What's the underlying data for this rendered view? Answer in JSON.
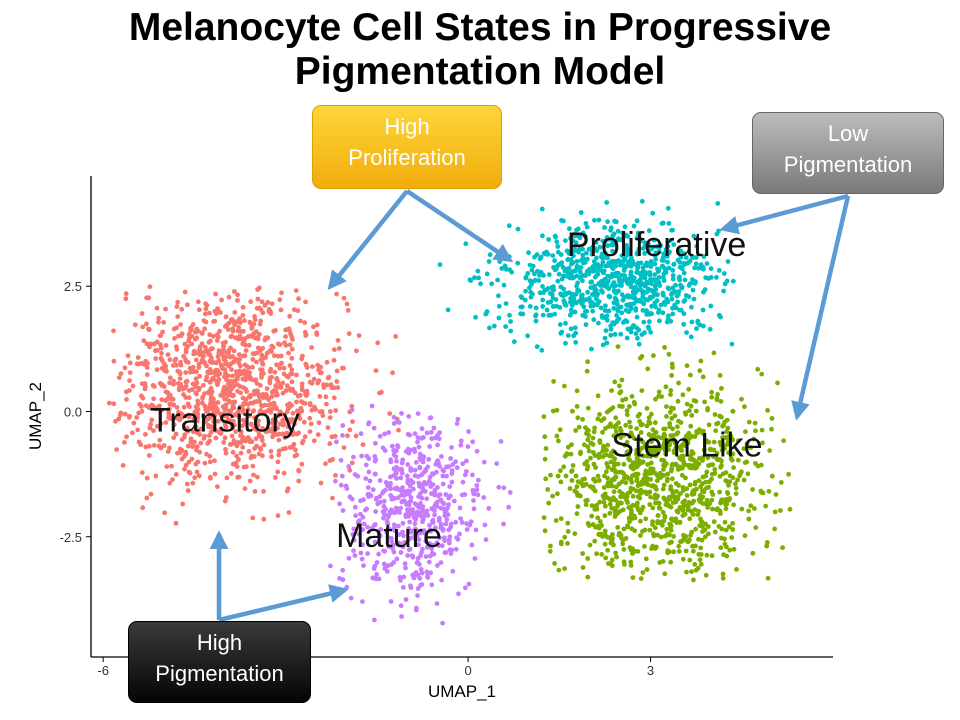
{
  "title": [
    "Melanocyte Cell States in Progressive",
    "Pigmentation Model"
  ],
  "chart_data": {
    "type": "scatter",
    "xlabel": "UMAP_1",
    "ylabel": "UMAP_2",
    "xlim": [
      -6.2,
      6.0
    ],
    "ylim": [
      -4.9,
      4.7
    ],
    "x_ticks": [
      -6,
      0,
      3
    ],
    "x_tick_labels": [
      "-6",
      "0",
      "3"
    ],
    "y_ticks": [
      2.5,
      0.0,
      -2.5
    ],
    "y_tick_labels": [
      "2.5",
      "0.0",
      "-2.5"
    ],
    "grid": false,
    "legend": "none",
    "clusters": [
      {
        "name": "Transitory",
        "color": "#f8766d",
        "n": 1150,
        "center": [
          -3.9,
          0.5
        ],
        "spread": [
          1.25,
          1.3
        ],
        "extent": [
          -5.9,
          -1.1,
          -2.8,
          2.5
        ]
      },
      {
        "name": "Mature",
        "color": "#c77cff",
        "n": 560,
        "center": [
          -0.9,
          -1.9
        ],
        "spread": [
          0.8,
          1.2
        ],
        "extent": [
          -2.3,
          0.7,
          -4.5,
          0.2
        ]
      },
      {
        "name": "Proliferative",
        "color": "#00bfc4",
        "n": 850,
        "center": [
          2.4,
          2.6
        ],
        "spread": [
          1.2,
          0.75
        ],
        "extent": [
          -0.5,
          4.4,
          0.8,
          4.3
        ]
      },
      {
        "name": "Stem Like",
        "color": "#7cae00",
        "n": 1050,
        "center": [
          3.1,
          -1.3
        ],
        "spread": [
          1.15,
          1.25
        ],
        "extent": [
          1.2,
          5.3,
          -3.4,
          1.4
        ]
      }
    ],
    "annotations": [
      {
        "text": "Proliferative",
        "x": 3.1,
        "y": 3.1
      },
      {
        "text": "Transitory",
        "x": -4.0,
        "y": -0.4
      },
      {
        "text": "Stem Like",
        "x": 3.6,
        "y": -0.9
      },
      {
        "text": "Mature",
        "x": -1.3,
        "y": -2.7
      }
    ]
  },
  "callouts": {
    "high_proliferation": [
      "High",
      "Proliferation"
    ],
    "low_pigmentation": [
      "Low",
      "Pigmentation"
    ],
    "high_pigmentation": [
      "High",
      "Pigmentation"
    ]
  },
  "colors": {
    "arrow": "#5b9bd5"
  }
}
